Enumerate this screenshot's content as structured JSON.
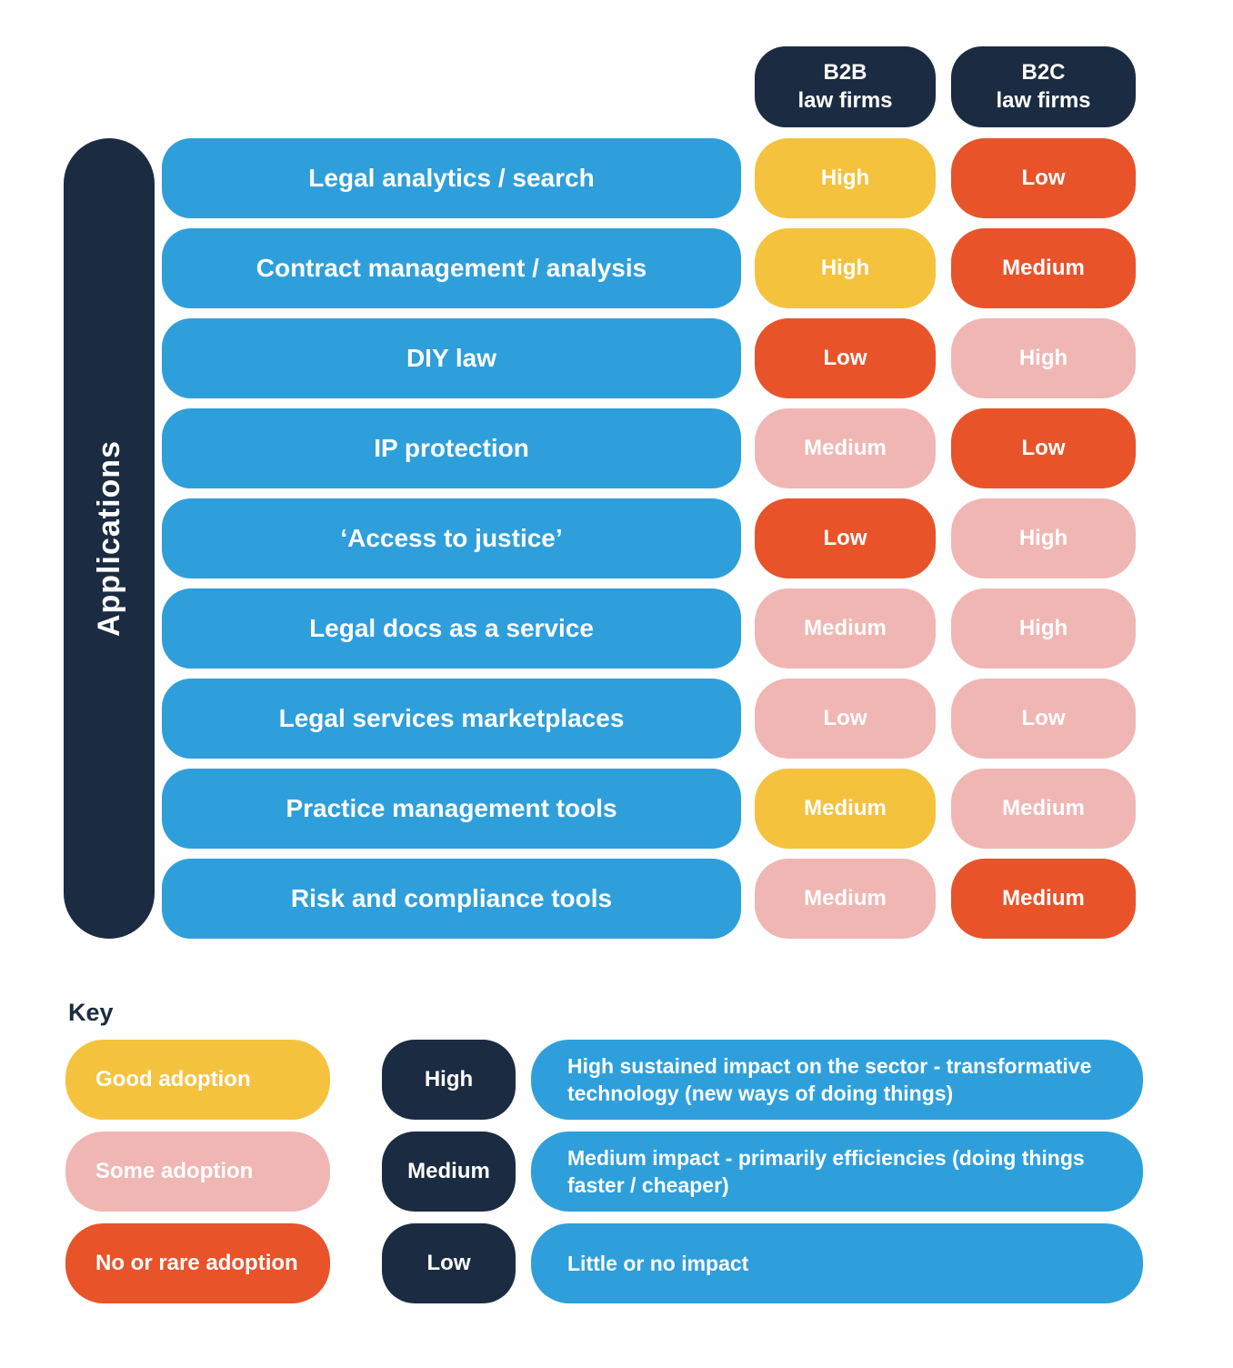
{
  "palette": {
    "navy": "#1b2b42",
    "blue": "#2e9fdb",
    "yellow": "#f5c23e",
    "orange": "#e8532a",
    "pink": "#f0b6b3"
  },
  "chart_data": {
    "type": "table",
    "title": "",
    "row_axis_label": "Applications",
    "columns": [
      {
        "id": "b2b",
        "label": "B2B\nlaw firms"
      },
      {
        "id": "b2c",
        "label": "B2C\nlaw firms"
      }
    ],
    "color_legend": {
      "yellow": "Good adoption",
      "pink": "Some adoption",
      "orange": "No or rare adoption"
    },
    "rows": [
      {
        "application": "Legal analytics / search",
        "b2b": {
          "label": "High",
          "color": "yellow"
        },
        "b2c": {
          "label": "Low",
          "color": "orange"
        }
      },
      {
        "application": "Contract management / analysis",
        "b2b": {
          "label": "High",
          "color": "yellow"
        },
        "b2c": {
          "label": "Medium",
          "color": "orange"
        }
      },
      {
        "application": "DIY law",
        "b2b": {
          "label": "Low",
          "color": "orange"
        },
        "b2c": {
          "label": "High",
          "color": "pink"
        }
      },
      {
        "application": "IP protection",
        "b2b": {
          "label": "Medium",
          "color": "pink"
        },
        "b2c": {
          "label": "Low",
          "color": "orange"
        }
      },
      {
        "application": "‘Access to justice’",
        "b2b": {
          "label": "Low",
          "color": "orange"
        },
        "b2c": {
          "label": "High",
          "color": "pink"
        }
      },
      {
        "application": "Legal docs as a service",
        "b2b": {
          "label": "Medium",
          "color": "pink"
        },
        "b2c": {
          "label": "High",
          "color": "pink"
        }
      },
      {
        "application": "Legal services marketplaces",
        "b2b": {
          "label": "Low",
          "color": "pink"
        },
        "b2c": {
          "label": "Low",
          "color": "pink"
        }
      },
      {
        "application": "Practice management tools",
        "b2b": {
          "label": "Medium",
          "color": "yellow"
        },
        "b2c": {
          "label": "Medium",
          "color": "pink"
        }
      },
      {
        "application": "Risk and compliance tools",
        "b2b": {
          "label": "Medium",
          "color": "pink"
        },
        "b2c": {
          "label": "Medium",
          "color": "orange"
        }
      }
    ]
  },
  "key": {
    "title": "Key",
    "adoption_items": [
      {
        "label": "Good adoption",
        "color": "yellow"
      },
      {
        "label": "Some adoption",
        "color": "pink"
      },
      {
        "label": "No or rare adoption",
        "color": "orange"
      }
    ],
    "impact_items": [
      {
        "label": "High",
        "description": "High sustained impact on the sector - transformative technology (new ways of doing things)"
      },
      {
        "label": "Medium",
        "description": "Medium impact - primarily efficiencies (doing things faster / cheaper)"
      },
      {
        "label": "Low",
        "description": "Little or no impact"
      }
    ]
  }
}
